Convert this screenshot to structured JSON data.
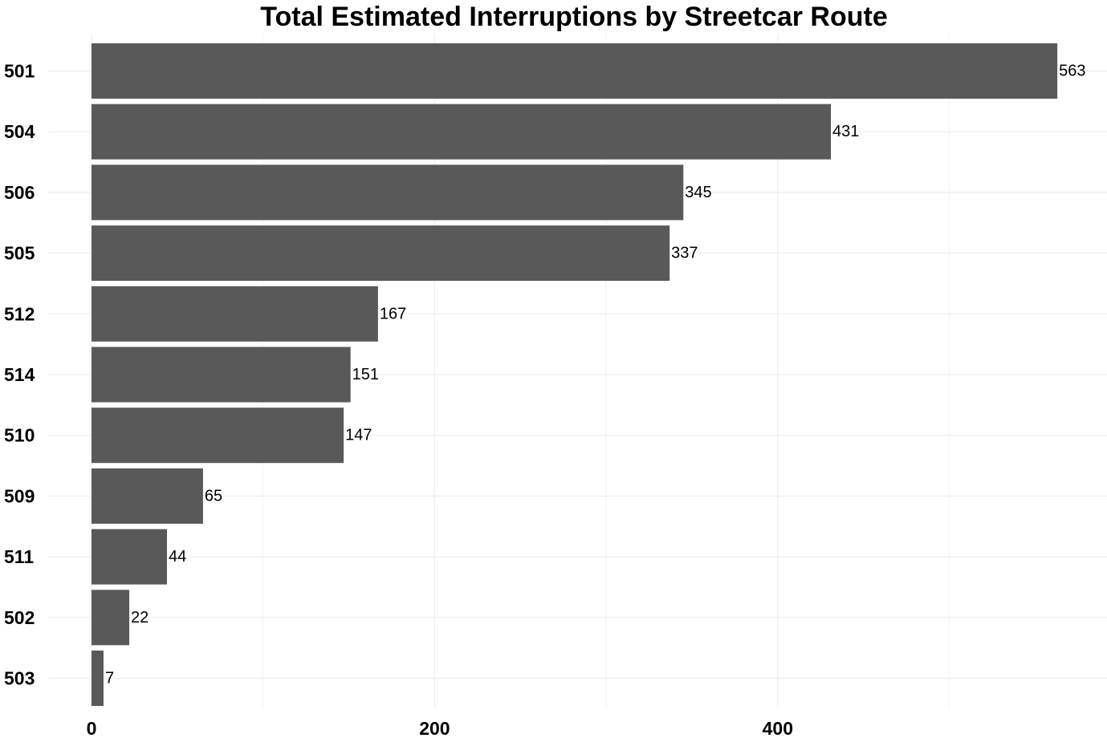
{
  "chart_data": {
    "type": "bar",
    "orientation": "horizontal",
    "title": "Total Estimated Interruptions by Streetcar Route",
    "xlabel": "",
    "ylabel": "",
    "categories": [
      "501",
      "504",
      "506",
      "505",
      "512",
      "514",
      "510",
      "509",
      "511",
      "502",
      "503"
    ],
    "values": [
      563,
      431,
      345,
      337,
      167,
      151,
      147,
      65,
      44,
      22,
      7
    ],
    "xlim": [
      0,
      590
    ],
    "x_ticks": [
      0,
      200,
      400
    ],
    "x_tick_labels": [
      "0",
      "200",
      "400"
    ],
    "x_minor_ticks": [
      100,
      300,
      500
    ],
    "grid": true,
    "bar_color": "#595959",
    "data_labels": true
  }
}
